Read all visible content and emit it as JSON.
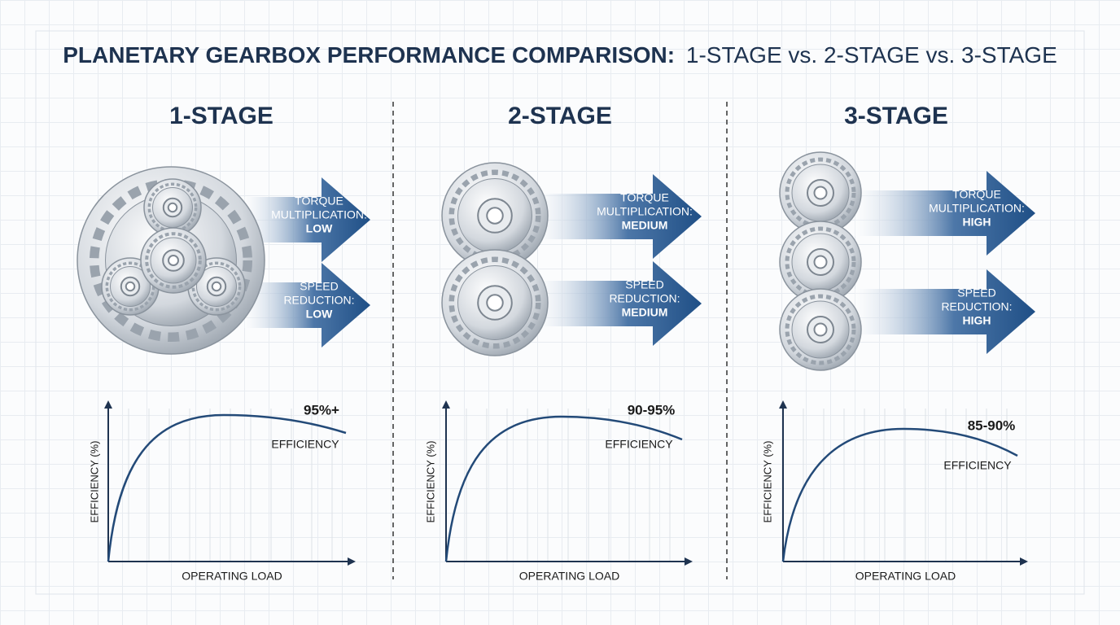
{
  "header": {
    "title_bold": "PLANETARY GEARBOX PERFORMANCE COMPARISON:",
    "title_regular": "1-STAGE vs. 2-STAGE vs. 3-STAGE"
  },
  "panels": [
    {
      "title": "1-STAGE",
      "torque": {
        "lines": [
          "TORQUE",
          "MULTIPLICATION:"
        ],
        "level": "LOW"
      },
      "speed": {
        "lines": [
          "SPEED",
          "REDUCTION:"
        ],
        "level": "LOW"
      },
      "chart": {
        "value": "95%+",
        "label": "EFFICIENCY",
        "y_label": "EFFICIENCY (%)",
        "x_label": "OPERATING LOAD"
      }
    },
    {
      "title": "2-STAGE",
      "torque": {
        "lines": [
          "TORQUE",
          "MULTIPLICATION:"
        ],
        "level": "MEDIUM"
      },
      "speed": {
        "lines": [
          "SPEED",
          "REDUCTION:"
        ],
        "level": "MEDIUM"
      },
      "chart": {
        "value": "90-95%",
        "label": "EFFICIENCY",
        "y_label": "EFFICIENCY (%)",
        "x_label": "OPERATING LOAD"
      }
    },
    {
      "title": "3-STAGE",
      "torque": {
        "lines": [
          "TORQUE",
          "MULTIPLICATION:"
        ],
        "level": "HIGH"
      },
      "speed": {
        "lines": [
          "SPEED",
          "REDUCTION:"
        ],
        "level": "HIGH"
      },
      "chart": {
        "value": "85-90%",
        "label": "EFFICIENCY",
        "y_label": "EFFICIENCY (%)",
        "x_label": "OPERATING LOAD"
      }
    }
  ]
}
